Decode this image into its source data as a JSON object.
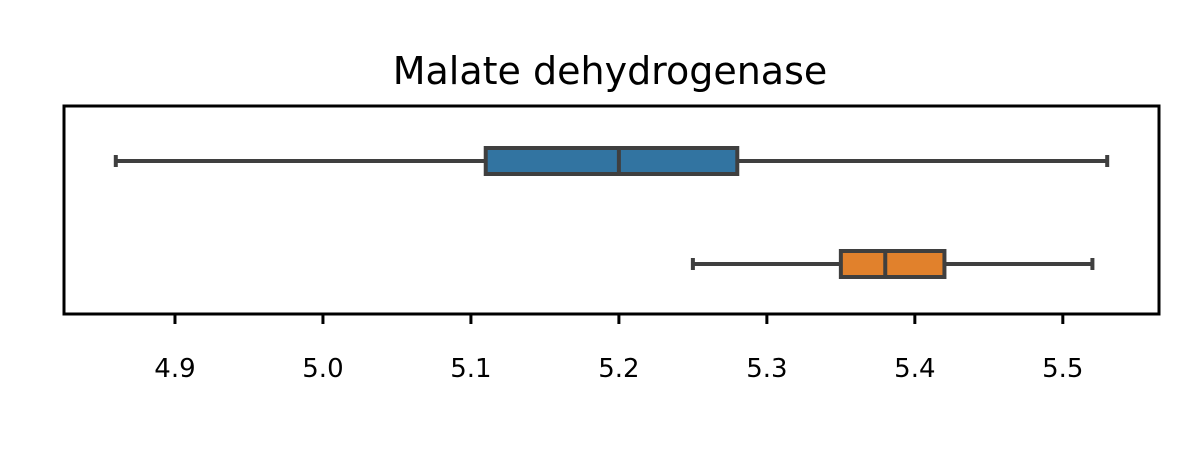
{
  "chart_data": {
    "type": "boxplot",
    "orientation": "horizontal",
    "title": "Malate dehydrogenase",
    "xlabel": "",
    "ylabel": "",
    "xlim": [
      4.825,
      5.565
    ],
    "xticks": [
      4.9,
      5.0,
      5.1,
      5.2,
      5.3,
      5.4,
      5.5
    ],
    "xtick_labels": [
      "4.9",
      "5.0",
      "5.1",
      "5.2",
      "5.3",
      "5.4",
      "5.5"
    ],
    "yticks_visible": false,
    "grid": false,
    "legend": "none",
    "boxes": [
      {
        "whisker_low": 4.86,
        "q1": 5.11,
        "median": 5.2,
        "q3": 5.28,
        "whisker_high": 5.53,
        "color": "#3274a1"
      },
      {
        "whisker_low": 5.25,
        "q1": 5.35,
        "median": 5.38,
        "q3": 5.42,
        "whisker_high": 5.52,
        "color": "#e1812c"
      }
    ],
    "line_color": "#3f3f3f"
  }
}
